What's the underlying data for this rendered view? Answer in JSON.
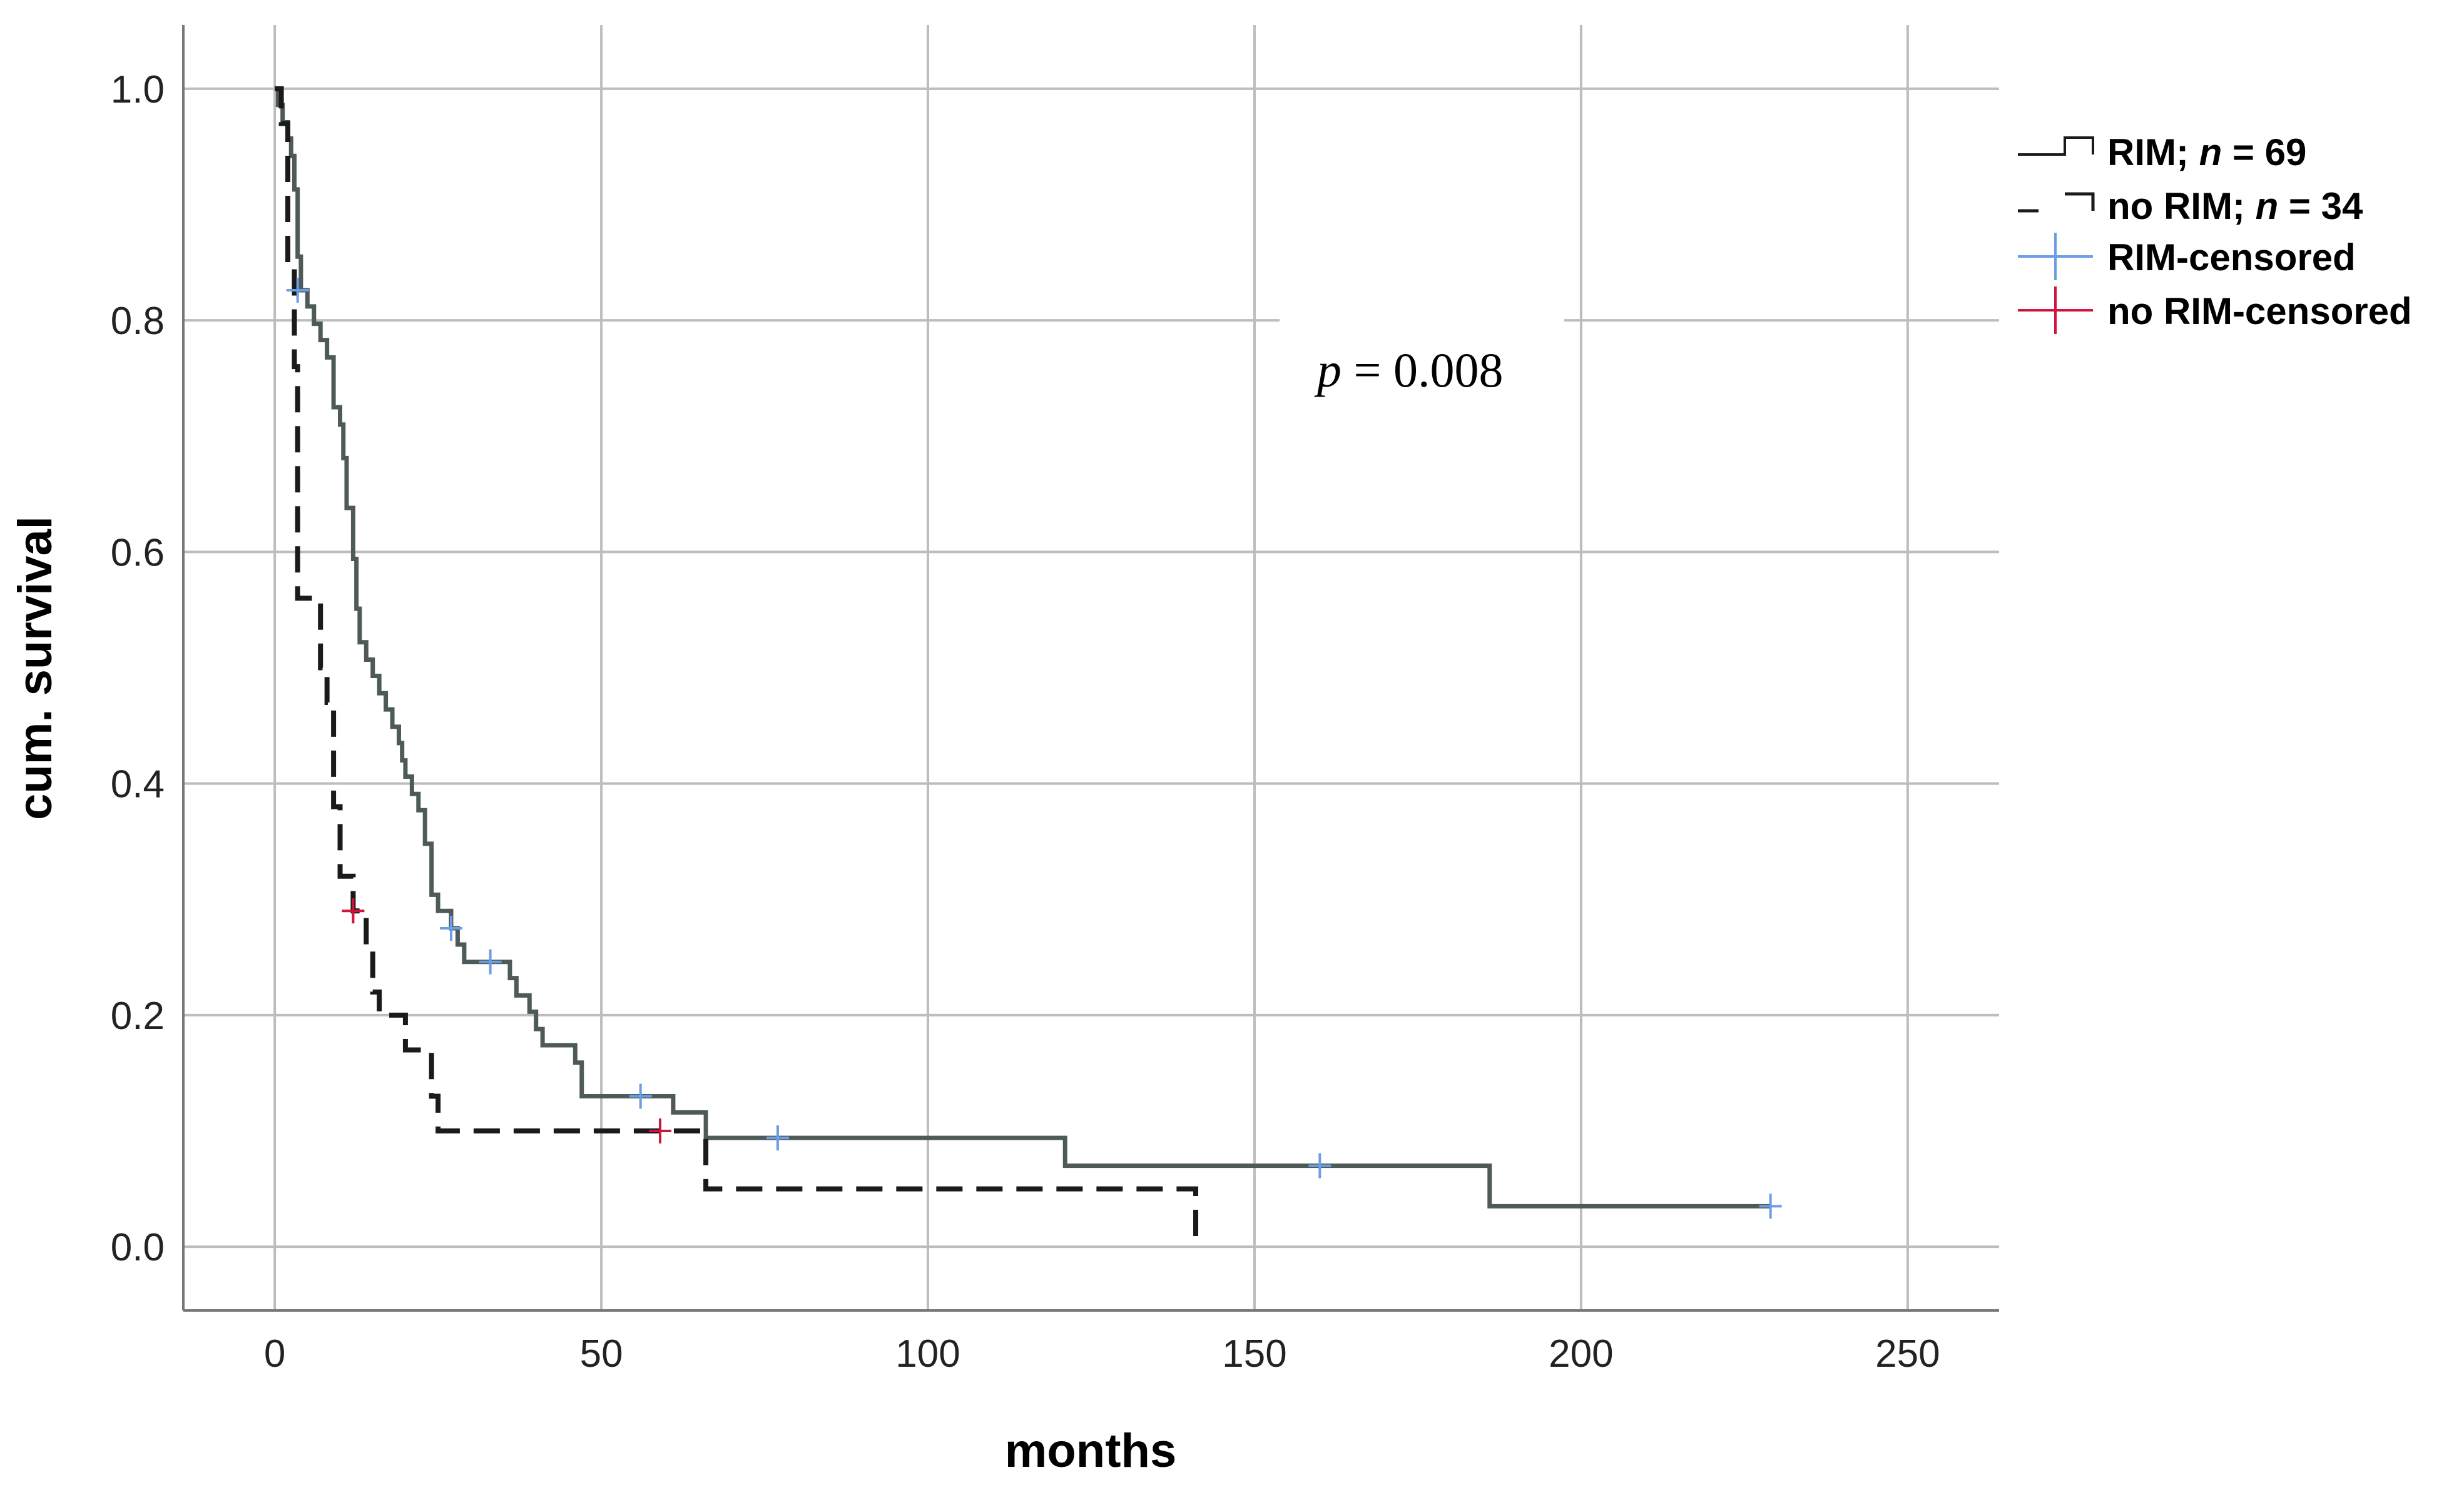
{
  "chart_data": {
    "type": "line",
    "subtype": "kaplan-meier-step",
    "title": "",
    "xlabel": "months",
    "ylabel": "cum. survival",
    "xlim": [
      -14,
      264
    ],
    "ylim": [
      -0.055,
      1.055
    ],
    "xticks": [
      0,
      50,
      100,
      150,
      200,
      250
    ],
    "xtick_labels": [
      "0",
      "50",
      "100",
      "150",
      "200",
      "250"
    ],
    "yticks": [
      0.0,
      0.2,
      0.4,
      0.6,
      0.8,
      1.0
    ],
    "ytick_labels": [
      "0.0",
      "0.2",
      "0.4",
      "0.6",
      "0.8",
      "1.0"
    ],
    "grid": true,
    "legend_position": "top-right outside",
    "annotation": {
      "italic": "p",
      "text": " = 0.008",
      "x": 175,
      "y": 0.755
    },
    "series": [
      {
        "name": "RIM",
        "legend_label_prefix": "RIM; ",
        "legend_label_n": "n",
        "legend_label_suffix": " = 69",
        "color": "#4d5a57",
        "dash": "solid",
        "steps": [
          [
            0,
            1.0
          ],
          [
            0.5,
            0.986
          ],
          [
            1.2,
            0.971
          ],
          [
            2,
            0.957
          ],
          [
            2.5,
            0.942
          ],
          [
            3,
            0.913
          ],
          [
            3.5,
            0.855
          ],
          [
            4,
            0.826
          ],
          [
            5,
            0.812
          ],
          [
            6,
            0.797
          ],
          [
            7,
            0.783
          ],
          [
            8,
            0.768
          ],
          [
            9,
            0.725
          ],
          [
            10,
            0.71
          ],
          [
            10.5,
            0.681
          ],
          [
            11,
            0.638
          ],
          [
            12,
            0.594
          ],
          [
            12.5,
            0.551
          ],
          [
            13,
            0.522
          ],
          [
            14,
            0.507
          ],
          [
            15,
            0.493
          ],
          [
            16,
            0.478
          ],
          [
            17,
            0.464
          ],
          [
            18,
            0.449
          ],
          [
            19,
            0.435
          ],
          [
            19.5,
            0.42
          ],
          [
            20,
            0.406
          ],
          [
            21,
            0.391
          ],
          [
            22,
            0.377
          ],
          [
            23,
            0.348
          ],
          [
            24,
            0.304
          ],
          [
            25,
            0.29
          ],
          [
            27,
            0.275
          ],
          [
            28,
            0.261
          ],
          [
            29,
            0.246
          ],
          [
            36,
            0.232
          ],
          [
            37,
            0.217
          ],
          [
            39,
            0.203
          ],
          [
            40,
            0.188
          ],
          [
            41,
            0.174
          ],
          [
            46,
            0.159
          ],
          [
            47,
            0.13
          ],
          [
            61,
            0.116
          ],
          [
            66,
            0.094
          ],
          [
            121,
            0.07
          ],
          [
            186,
            0.035
          ],
          [
            229,
            0.035
          ]
        ],
        "censored": [
          [
            3.5,
            0.826
          ],
          [
            27,
            0.275
          ],
          [
            33,
            0.246
          ],
          [
            56,
            0.13
          ],
          [
            77,
            0.094
          ],
          [
            160,
            0.07
          ],
          [
            229,
            0.035
          ]
        ]
      },
      {
        "name": "no RIM",
        "legend_label_prefix": "no RIM; ",
        "legend_label_n": "n",
        "legend_label_suffix": " = 34",
        "color": "#1a1a1a",
        "dash": "dashed",
        "steps": [
          [
            0,
            1.0
          ],
          [
            1,
            0.97
          ],
          [
            2,
            0.85
          ],
          [
            3,
            0.76
          ],
          [
            3.5,
            0.56
          ],
          [
            7,
            0.5
          ],
          [
            8,
            0.47
          ],
          [
            9,
            0.38
          ],
          [
            10,
            0.32
          ],
          [
            12,
            0.29
          ],
          [
            14,
            0.26
          ],
          [
            15,
            0.22
          ],
          [
            16,
            0.2
          ],
          [
            20,
            0.17
          ],
          [
            24,
            0.13
          ],
          [
            25,
            0.1
          ],
          [
            66,
            0.05
          ],
          [
            141,
            0.0
          ]
        ],
        "censored": [
          [
            12,
            0.29
          ],
          [
            59,
            0.1
          ]
        ]
      }
    ],
    "censor_legend": [
      {
        "label": "RIM-censored",
        "color": "#6a9ee6"
      },
      {
        "label": "no RIM-censored",
        "color": "#d0143c"
      }
    ]
  }
}
